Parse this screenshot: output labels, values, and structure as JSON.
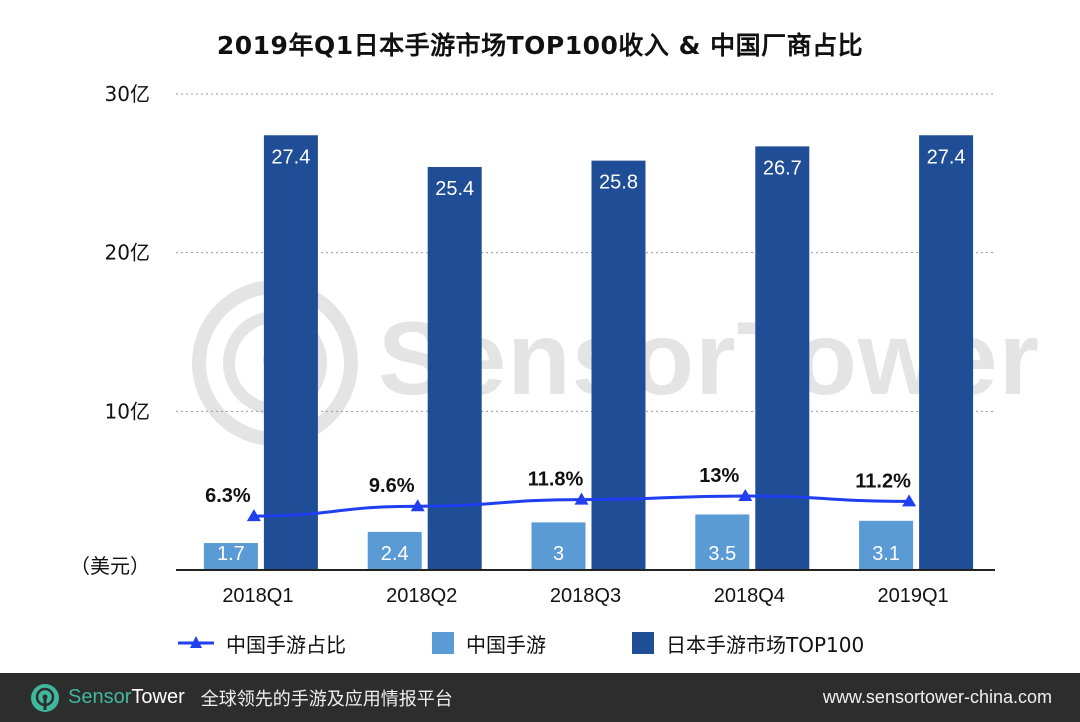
{
  "title": "2019年Q1日本手游市场TOP100收入 & 中国厂商占比",
  "chart_data": {
    "type": "bar",
    "categories": [
      "2018Q1",
      "2018Q2",
      "2018Q3",
      "2018Q4",
      "2019Q1"
    ],
    "series": [
      {
        "name": "中国手游",
        "values": [
          1.7,
          2.4,
          3,
          3.5,
          3.1
        ],
        "labels": [
          "1.7",
          "2.4",
          "3",
          "3.5",
          "3.1"
        ],
        "color": "#5b9bd5"
      },
      {
        "name": "日本手游市场TOP100",
        "values": [
          27.4,
          25.4,
          25.8,
          26.7,
          27.4
        ],
        "labels": [
          "27.4",
          "25.4",
          "25.8",
          "26.7",
          "27.4"
        ],
        "color": "#1f4e96"
      }
    ],
    "line_series": {
      "name": "中国手游占比",
      "values": [
        6.3,
        9.6,
        11.8,
        13,
        11.2
      ],
      "labels": [
        "6.3%",
        "9.6%",
        "11.8%",
        "13%",
        "11.2%"
      ],
      "color": "#1f3ff0"
    },
    "y_ticks": [
      {
        "value": 10,
        "label": "10亿"
      },
      {
        "value": 20,
        "label": "20亿"
      },
      {
        "value": 30,
        "label": "30亿"
      }
    ],
    "ylabel": "（美元）",
    "ylim": [
      0,
      30
    ],
    "grid": true,
    "legend_position": "bottom"
  },
  "legend": [
    {
      "label": "中国手游占比",
      "kind": "line",
      "color": "#1f3ff0"
    },
    {
      "label": "中国手游",
      "kind": "box",
      "color": "#5b9bd5"
    },
    {
      "label": "日本手游市场TOP100",
      "kind": "box",
      "color": "#1f4e96"
    }
  ],
  "watermark": "SensorTower",
  "footer": {
    "brand_part1": "Sensor",
    "brand_part2": "Tower",
    "slogan": "全球领先的手游及应用情报平台",
    "url": "www.sensortower-china.com"
  }
}
